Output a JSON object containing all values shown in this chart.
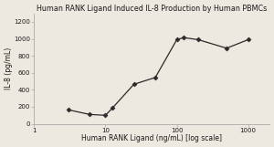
{
  "title": "Human RANK Ligand Induced IL-8 Production by Human PBMCs",
  "xlabel": "Human RANK Ligand (ng/mL) [log scale]",
  "ylabel": "IL-8 (pg/mL)",
  "x_values": [
    3,
    6,
    10,
    12.5,
    25,
    50,
    100,
    125,
    200,
    500,
    1000
  ],
  "y_values": [
    165,
    110,
    100,
    185,
    465,
    545,
    990,
    1015,
    990,
    890,
    990
  ],
  "xlim_log": [
    0.301,
    3.301
  ],
  "ylim": [
    0,
    1300
  ],
  "yticks": [
    0,
    200,
    400,
    600,
    800,
    1000,
    1200
  ],
  "xticks": [
    1,
    10,
    100,
    1000
  ],
  "xtick_labels": [
    "1",
    "10",
    "100",
    "1000"
  ],
  "line_color": "#2a2a2a",
  "marker": "D",
  "marker_size": 2.5,
  "marker_color": "#2a2a2a",
  "title_fontsize": 5.8,
  "label_fontsize": 5.5,
  "tick_fontsize": 5.0,
  "background_color": "#ede8e0",
  "fig_color": "#ede8e0",
  "spine_color": "#aaaaaa",
  "linewidth": 0.9
}
